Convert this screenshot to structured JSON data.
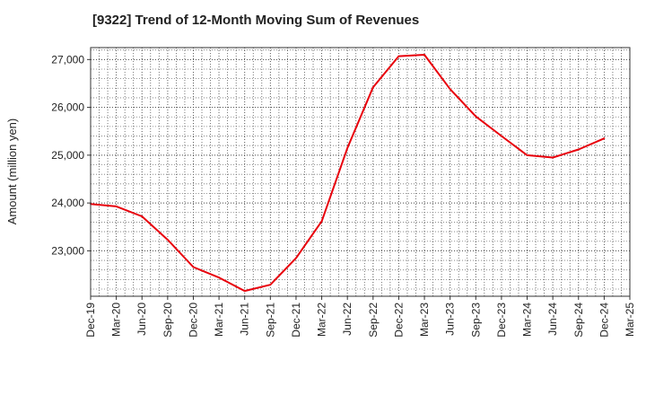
{
  "chart_data": {
    "type": "line",
    "title": "[9322]  Trend of 12-Month Moving Sum of Revenues",
    "xlabel": "",
    "ylabel": "Amount (million yen)",
    "ylim": [
      22050,
      27250
    ],
    "yticks": [
      23000,
      24000,
      25000,
      26000,
      27000
    ],
    "ytick_labels": [
      "23,000",
      "24,000",
      "25,000",
      "26,000",
      "27,000"
    ],
    "categories": [
      "Dec-19",
      "Mar-20",
      "Jun-20",
      "Sep-20",
      "Dec-20",
      "Mar-21",
      "Jun-21",
      "Sep-21",
      "Dec-21",
      "Mar-22",
      "Jun-22",
      "Sep-22",
      "Dec-22",
      "Mar-23",
      "Jun-23",
      "Sep-23",
      "Dec-23",
      "Mar-24",
      "Jun-24",
      "Sep-24",
      "Dec-24",
      "Mar-25"
    ],
    "grid": true,
    "grid_style": "dotted",
    "series": [
      {
        "color": "#e8000b",
        "values": [
          23980,
          23930,
          23720,
          23230,
          22660,
          22440,
          22160,
          22290,
          22850,
          23620,
          25150,
          26420,
          27070,
          27100,
          26380,
          25810,
          25400,
          25000,
          24950,
          25120,
          25350,
          null
        ]
      }
    ]
  }
}
